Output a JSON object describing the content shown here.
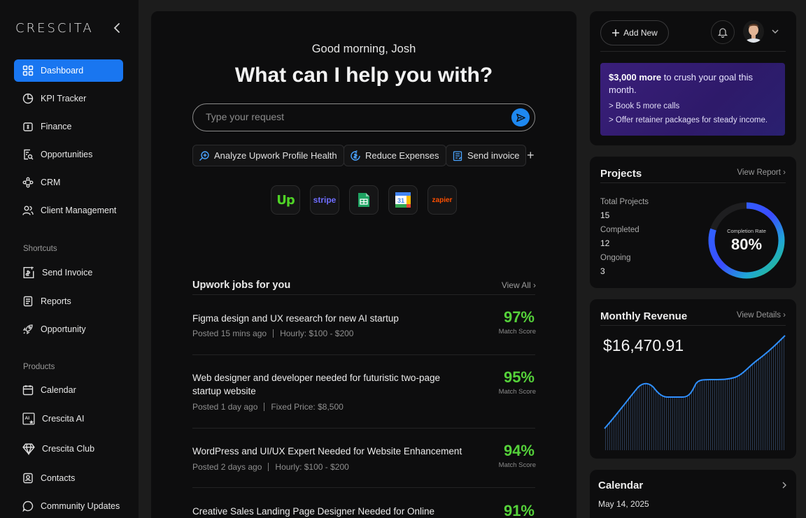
{
  "sidebar": {
    "logo": "CRESCITA",
    "nav": [
      {
        "label": "Dashboard",
        "icon": "dashboard-icon",
        "active": true
      },
      {
        "label": "KPI Tracker",
        "icon": "pie-chart-icon"
      },
      {
        "label": "Finance",
        "icon": "wallet-icon"
      },
      {
        "label": "Opportunities",
        "icon": "search-document-icon"
      },
      {
        "label": "CRM",
        "icon": "network-icon"
      },
      {
        "label": "Client Management",
        "icon": "users-icon"
      }
    ],
    "shortcuts_label": "Shortcuts",
    "shortcuts": [
      {
        "label": "Send Invoice",
        "icon": "invoice-icon"
      },
      {
        "label": "Reports",
        "icon": "report-icon"
      },
      {
        "label": "Opportunity",
        "icon": "rocket-icon"
      }
    ],
    "products_label": "Products",
    "products": [
      {
        "label": "Calendar",
        "icon": "calendar-icon"
      },
      {
        "label": "Crescita AI",
        "icon": "ai-icon"
      },
      {
        "label": "Crescita Club",
        "icon": "diamond-icon"
      },
      {
        "label": "Contacts",
        "icon": "contacts-icon"
      },
      {
        "label": "Community Updates",
        "icon": "chat-icon"
      }
    ]
  },
  "main": {
    "greeting": "Good morning, Josh",
    "headline": "What can I help you with?",
    "request_placeholder": "Type your request",
    "chips": [
      "Analyze Upwork Profile Health",
      "Reduce Expenses",
      "Send invoice"
    ],
    "integrations": [
      "upwork",
      "stripe",
      "google-sheets",
      "google-calendar",
      "zapier"
    ],
    "integration_labels": {
      "upwork": "Up",
      "stripe": "stripe",
      "calendar": "31",
      "zapier": "zapier"
    },
    "jobs_title": "Upwork jobs for you",
    "view_all": "View All",
    "score_label": "Match Score",
    "jobs": [
      {
        "title": "Figma design and UX research for new AI startup",
        "posted": "Posted 15 mins ago",
        "rate": "Hourly: $100 - $200",
        "score": "97%"
      },
      {
        "title": "Web designer and developer needed for futuristic two-page startup website",
        "posted": "Posted 1 day ago",
        "rate": "Fixed Price: $8,500",
        "score": "95%"
      },
      {
        "title": "WordPress and UI/UX Expert Needed for Website Enhancement",
        "posted": "Posted 2 days ago",
        "rate": "Hourly: $100 - $200",
        "score": "94%"
      },
      {
        "title": "Creative Sales Landing Page Designer Needed for Online",
        "posted": "",
        "rate": "",
        "score": "91%"
      }
    ]
  },
  "right": {
    "add_new": "Add New",
    "goal": {
      "amount": "$3,000 more",
      "text": " to crush your goal this month.",
      "tip1": "> Book 5 more calls",
      "tip2": "> Offer retainer packages for steady income."
    },
    "projects": {
      "title": "Projects",
      "link": "View Report",
      "total_label": "Total Projects",
      "total": "15",
      "completed_label": "Completed",
      "completed": "12",
      "ongoing_label": "Ongoing",
      "ongoing": "3",
      "rate_label": "Completion Rate",
      "rate": "80%",
      "rate_value": 0.8
    },
    "revenue": {
      "title": "Monthly Revenue",
      "link": "View Details",
      "amount": "$16,470.91"
    },
    "calendar": {
      "title": "Calendar",
      "date": "May 14, 2025"
    }
  },
  "colors": {
    "accent": "#1976f0",
    "score": "#55d13a",
    "goal_bg": "#3a1f7a"
  }
}
